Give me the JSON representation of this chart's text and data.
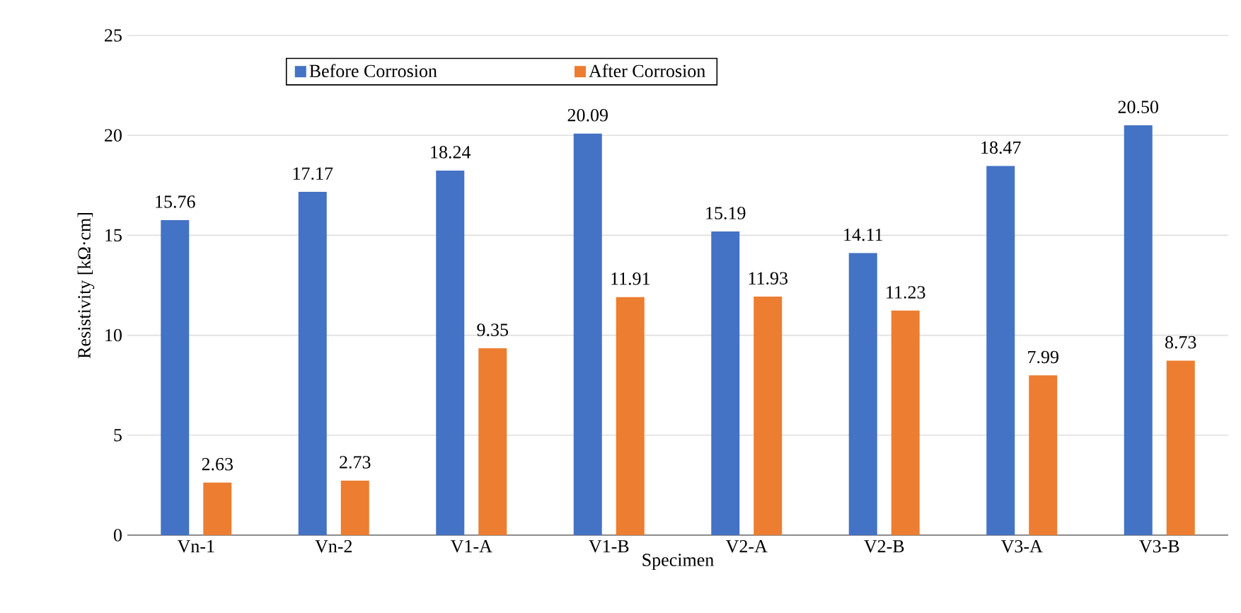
{
  "chart_data": {
    "type": "bar",
    "xlabel": "Specimen",
    "ylabel": "Resistivity [kΩ·cm]",
    "categories": [
      "Vn-1",
      "Vn-2",
      "V1-A",
      "V1-B",
      "V2-A",
      "V2-B",
      "V3-A",
      "V3-B"
    ],
    "series": [
      {
        "name": "Before Corrosion",
        "color": "#4472c4",
        "values": [
          15.76,
          17.17,
          18.24,
          20.09,
          15.19,
          14.11,
          18.47,
          20.5
        ],
        "value_labels": [
          "15.76",
          "17.17",
          "18.24",
          "20.09",
          "15.19",
          "14.11",
          "18.47",
          "20.50"
        ]
      },
      {
        "name": "After Corrosion",
        "color": "#ed7d31",
        "values": [
          2.63,
          2.73,
          9.35,
          11.91,
          11.93,
          11.23,
          7.99,
          8.73
        ],
        "value_labels": [
          "2.63",
          "2.73",
          "9.35",
          "11.91",
          "11.93",
          "11.23",
          "7.99",
          "8.73"
        ]
      }
    ],
    "ylim": [
      0,
      25
    ],
    "yticks": [
      0,
      5,
      10,
      15,
      20,
      25
    ],
    "grid": "y",
    "legend": "top"
  }
}
